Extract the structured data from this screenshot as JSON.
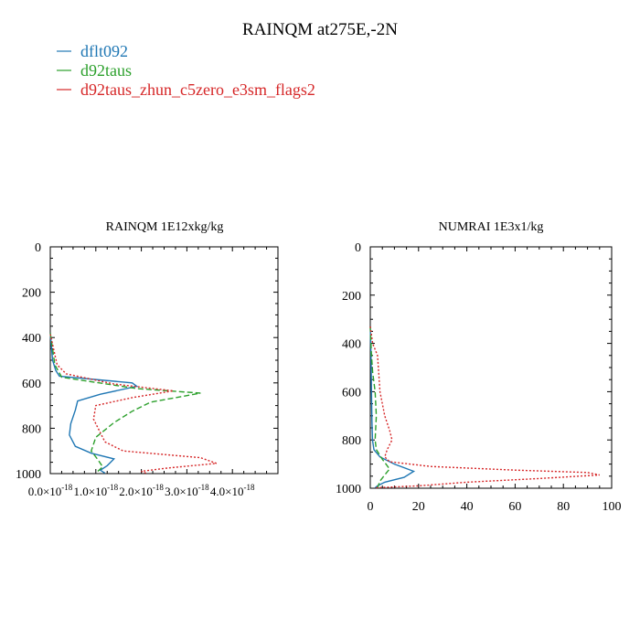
{
  "figure": {
    "title": "RAINQM at275E,-2N"
  },
  "legend": [
    {
      "name": "dflt092",
      "color": "#1f77b4",
      "dash": "solid"
    },
    {
      "name": "d92taus",
      "color": "#2ca02c",
      "dash": "dashed"
    },
    {
      "name": "d92taus_zhun_c5zero_e3sm_flags2",
      "color": "#d62728",
      "dash": "dotted"
    }
  ],
  "chart_data": [
    {
      "type": "line",
      "title": "RAINQM  1E12xkg/kg",
      "xlim": [
        0,
        5e-18
      ],
      "ylim": [
        1000,
        0
      ],
      "x_ticks": [
        {
          "mantissa": "0.0",
          "exp": "-18",
          "value": 0
        },
        {
          "mantissa": "1.0",
          "exp": "-18",
          "value": 1e-18
        },
        {
          "mantissa": "2.0",
          "exp": "-18",
          "value": 2e-18
        },
        {
          "mantissa": "3.0",
          "exp": "-18",
          "value": 3e-18
        },
        {
          "mantissa": "4.0",
          "exp": "-18",
          "value": 4e-18
        }
      ],
      "y_ticks": [
        "0",
        "200",
        "400",
        "600",
        "800",
        "1000"
      ],
      "series": [
        {
          "name": "dflt092",
          "points": [
            [
              0,
              380
            ],
            [
              5e-20,
              500
            ],
            [
              1.2e-19,
              545
            ],
            [
              2e-19,
              570
            ],
            [
              1.8e-18,
              600
            ],
            [
              1.9e-18,
              615
            ],
            [
              1.1e-18,
              650
            ],
            [
              6e-19,
              680
            ],
            [
              5.5e-19,
              720
            ],
            [
              4.5e-19,
              780
            ],
            [
              4.2e-19,
              830
            ],
            [
              5.5e-19,
              880
            ],
            [
              9e-19,
              910
            ],
            [
              1.4e-18,
              935
            ],
            [
              1.25e-18,
              965
            ],
            [
              1.1e-18,
              985
            ],
            [
              1.2e-18,
              998
            ]
          ]
        },
        {
          "name": "d92taus",
          "points": [
            [
              0,
              380
            ],
            [
              1e-19,
              520
            ],
            [
              2.5e-19,
              575
            ],
            [
              1.9e-18,
              625
            ],
            [
              3.3e-18,
              645
            ],
            [
              2.2e-18,
              685
            ],
            [
              1.8e-18,
              725
            ],
            [
              1.4e-18,
              775
            ],
            [
              1e-18,
              840
            ],
            [
              9e-19,
              900
            ],
            [
              1.05e-18,
              940
            ],
            [
              1.15e-18,
              970
            ],
            [
              1e-18,
              998
            ]
          ]
        },
        {
          "name": "d92taus_zhun_c5zero_e3sm_flags2",
          "points": [
            [
              0,
              385
            ],
            [
              1.5e-19,
              520
            ],
            [
              3.5e-19,
              560
            ],
            [
              1.4e-18,
              605
            ],
            [
              2.7e-18,
              635
            ],
            [
              1.8e-18,
              665
            ],
            [
              1e-18,
              700
            ],
            [
              9.5e-19,
              760
            ],
            [
              1.2e-18,
              860
            ],
            [
              1.6e-18,
              900
            ],
            [
              3.3e-18,
              930
            ],
            [
              3.65e-18,
              955
            ],
            [
              2.6e-18,
              975
            ],
            [
              2e-18,
              990
            ],
            [
              2.1e-18,
              998
            ]
          ]
        }
      ]
    },
    {
      "type": "line",
      "title": "NUMRAI  1E3x1/kg",
      "xlim": [
        0,
        100
      ],
      "ylim": [
        1000,
        0
      ],
      "x_ticks": [
        "0",
        "20",
        "40",
        "60",
        "80",
        "100"
      ],
      "y_ticks": [
        "0",
        "200",
        "400",
        "600",
        "800",
        "1000"
      ],
      "series": [
        {
          "name": "dflt092",
          "points": [
            [
              0,
              330
            ],
            [
              0.3,
              450
            ],
            [
              0.5,
              600
            ],
            [
              0.7,
              720
            ],
            [
              0.9,
              800
            ],
            [
              1.5,
              840
            ],
            [
              4,
              870
            ],
            [
              10,
              900
            ],
            [
              18,
              930
            ],
            [
              14,
              955
            ],
            [
              6,
              975
            ],
            [
              3,
              990
            ],
            [
              2,
              998
            ]
          ]
        },
        {
          "name": "d92taus",
          "points": [
            [
              0,
              330
            ],
            [
              0.5,
              450
            ],
            [
              1,
              520
            ],
            [
              2,
              600
            ],
            [
              2.5,
              700
            ],
            [
              2,
              800
            ],
            [
              2.5,
              840
            ],
            [
              5,
              880
            ],
            [
              8,
              920
            ],
            [
              6,
              945
            ],
            [
              4,
              970
            ],
            [
              3,
              998
            ]
          ]
        },
        {
          "name": "d92taus_zhun_c5zero_e3sm_flags2",
          "points": [
            [
              0,
              330
            ],
            [
              1,
              400
            ],
            [
              3,
              450
            ],
            [
              3.5,
              520
            ],
            [
              4,
              600
            ],
            [
              6,
              700
            ],
            [
              8,
              760
            ],
            [
              9,
              800
            ],
            [
              7,
              840
            ],
            [
              6,
              870
            ],
            [
              8,
              890
            ],
            [
              25,
              910
            ],
            [
              60,
              925
            ],
            [
              90,
              935
            ],
            [
              95,
              945
            ],
            [
              70,
              960
            ],
            [
              40,
              975
            ],
            [
              20,
              990
            ],
            [
              2,
              998
            ]
          ]
        }
      ]
    }
  ]
}
